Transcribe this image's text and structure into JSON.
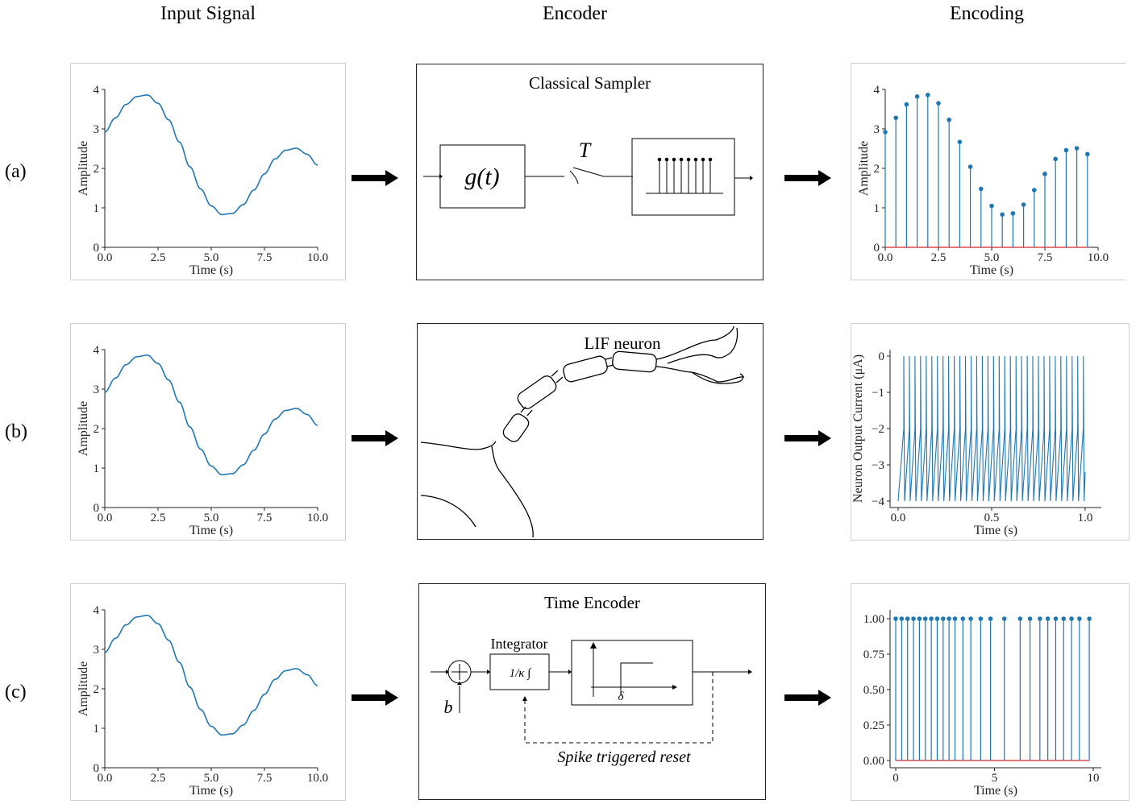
{
  "headers": {
    "input": "Input Signal",
    "encoder": "Encoder",
    "encoding": "Encoding"
  },
  "rows": [
    {
      "label": "(a)",
      "encoder_title": "Classical Sampler"
    },
    {
      "label": "(b)",
      "encoder_title": "LIF neuron"
    },
    {
      "label": "(c)",
      "encoder_title": "Time Encoder"
    }
  ],
  "sampler": {
    "block_label": "g(t)",
    "switch_label": "T"
  },
  "time_encoder": {
    "integrator_label": "Integrator",
    "integrator_block": "1/κ ∫",
    "bias_label": "b",
    "threshold_label": "δ",
    "reset_label": "Spike triggered reset"
  },
  "chart_data": [
    {
      "type": "line",
      "panel": "input-signal",
      "xlabel": "Time (s)",
      "ylabel": "Amplitude",
      "xlim": [
        0,
        10
      ],
      "ylim": [
        0,
        4
      ],
      "x_ticks": [
        "0.0",
        "2.5",
        "5.0",
        "7.5",
        "10.0"
      ],
      "y_ticks": [
        "0",
        "1",
        "2",
        "3",
        "4"
      ],
      "series": [
        {
          "x": [
            0,
            0.5,
            1,
            1.5,
            2,
            2.5,
            3,
            3.5,
            4,
            4.5,
            5,
            5.5,
            6,
            6.5,
            7,
            7.5,
            8,
            8.5,
            9,
            9.5,
            10
          ],
          "y": [
            2.92,
            3.28,
            3.62,
            3.82,
            3.86,
            3.65,
            3.23,
            2.67,
            2.04,
            1.48,
            1.05,
            0.83,
            0.86,
            1.08,
            1.45,
            1.86,
            2.24,
            2.46,
            2.51,
            2.36,
            2.08
          ]
        }
      ]
    },
    {
      "type": "scatter",
      "panel": "sampled-encoding",
      "xlabel": "Time (s)",
      "ylabel": "Amplitude",
      "xlim": [
        0,
        10
      ],
      "ylim": [
        0,
        4
      ],
      "x_ticks": [
        "0.0",
        "2.5",
        "5.0",
        "7.5",
        "10.0"
      ],
      "y_ticks": [
        "0",
        "1",
        "2",
        "3",
        "4"
      ],
      "x": [
        0,
        0.5,
        1,
        1.5,
        2,
        2.5,
        3,
        3.5,
        4,
        4.5,
        5,
        5.5,
        6,
        6.5,
        7,
        7.5,
        8,
        8.5,
        9,
        9.5
      ],
      "y": [
        2.92,
        3.28,
        3.62,
        3.82,
        3.86,
        3.65,
        3.23,
        2.67,
        2.04,
        1.48,
        1.05,
        0.83,
        0.86,
        1.08,
        1.45,
        1.86,
        2.24,
        2.46,
        2.51,
        2.36
      ]
    },
    {
      "type": "line",
      "panel": "lif-output",
      "xlabel": "Time (s)",
      "ylabel": "Neuron Output Current (μA)",
      "xlim": [
        0,
        1
      ],
      "ylim": [
        -4,
        0
      ],
      "x_ticks": [
        "0.0",
        "0.5",
        "1.0"
      ],
      "y_ticks": [
        "0",
        "−1",
        "−2",
        "−3",
        "−4"
      ],
      "spike_times": [
        0.03,
        0.06,
        0.09,
        0.12,
        0.15,
        0.18,
        0.21,
        0.24,
        0.27,
        0.3,
        0.33,
        0.36,
        0.39,
        0.42,
        0.45,
        0.48,
        0.51,
        0.54,
        0.57,
        0.6,
        0.63,
        0.66,
        0.69,
        0.72,
        0.75,
        0.78,
        0.81,
        0.84,
        0.87,
        0.9,
        0.93,
        0.96,
        0.99
      ],
      "reset_level": -2,
      "trough_level": -4
    },
    {
      "type": "scatter",
      "panel": "time-encoding",
      "xlabel": "Time (s)",
      "ylabel": "",
      "xlim": [
        0,
        10
      ],
      "ylim": [
        0,
        1
      ],
      "x_ticks": [
        "0",
        "5",
        "10"
      ],
      "y_ticks": [
        "0.00",
        "0.25",
        "0.50",
        "0.75",
        "1.00"
      ],
      "x": [
        0,
        0.3,
        0.6,
        0.9,
        1.2,
        1.5,
        1.8,
        2.1,
        2.4,
        2.7,
        3.0,
        3.4,
        3.8,
        4.3,
        4.8,
        5.5,
        6.3,
        6.8,
        7.3,
        7.7,
        8.1,
        8.5,
        8.9,
        9.3,
        9.8
      ],
      "y": [
        1,
        1,
        1,
        1,
        1,
        1,
        1,
        1,
        1,
        1,
        1,
        1,
        1,
        1,
        1,
        1,
        1,
        1,
        1,
        1,
        1,
        1,
        1,
        1,
        1
      ]
    }
  ]
}
